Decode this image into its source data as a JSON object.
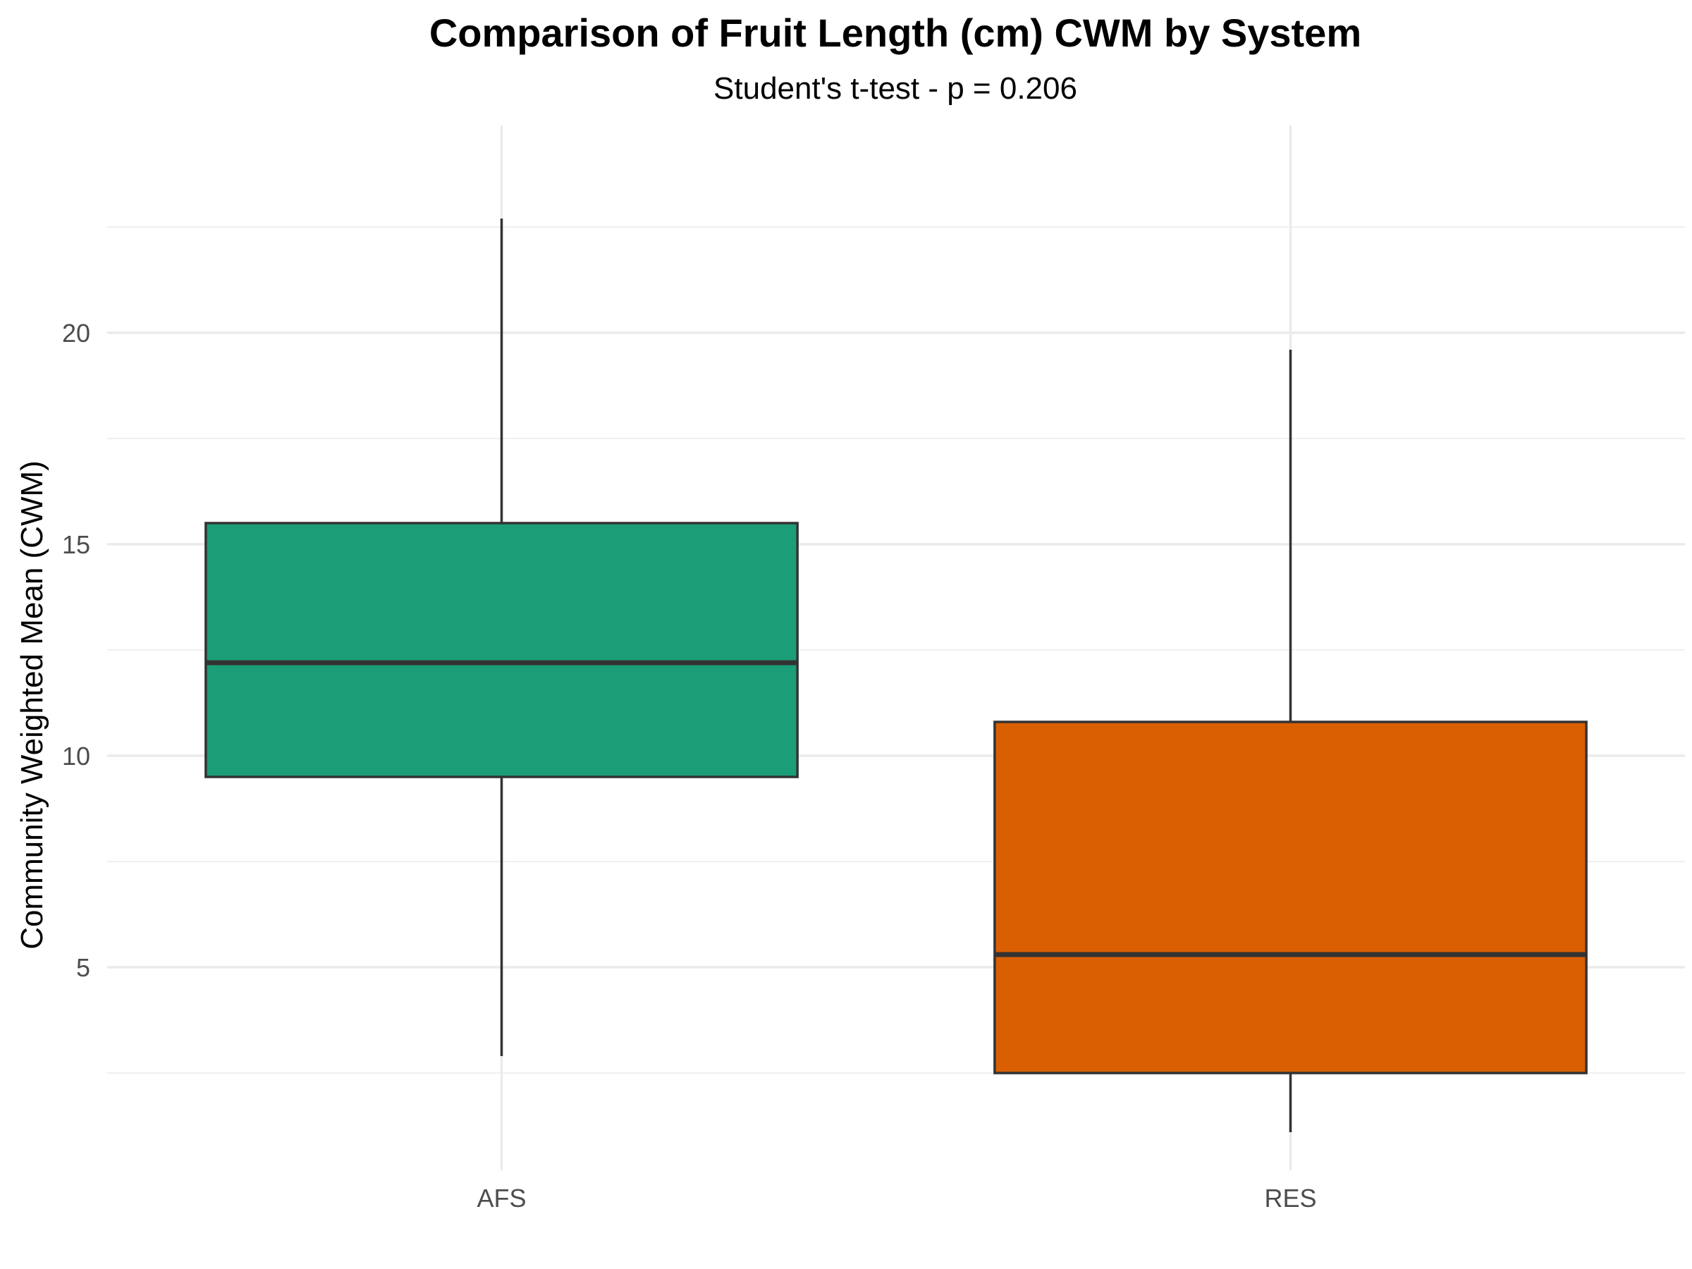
{
  "chart_data": {
    "type": "boxplot",
    "title": "Comparison of Fruit Length (cm) CWM by System",
    "subtitle": "Student's t-test - p = 0.206",
    "xlabel": "",
    "ylabel": "Community Weighted Mean (CWM)",
    "ylim": [
      0.2,
      24.9
    ],
    "yticks": [
      5,
      10,
      15,
      20
    ],
    "grid": true,
    "categories": [
      "AFS",
      "RES"
    ],
    "boxes": [
      {
        "category": "AFS",
        "color": "#1b9e77",
        "whisker_low": 2.9,
        "q1": 9.5,
        "median": 12.2,
        "q3": 15.5,
        "whisker_high": 22.7
      },
      {
        "category": "RES",
        "color": "#d95f02",
        "whisker_low": 1.1,
        "q1": 2.5,
        "median": 5.3,
        "q3": 10.8,
        "whisker_high": 19.6
      }
    ]
  }
}
